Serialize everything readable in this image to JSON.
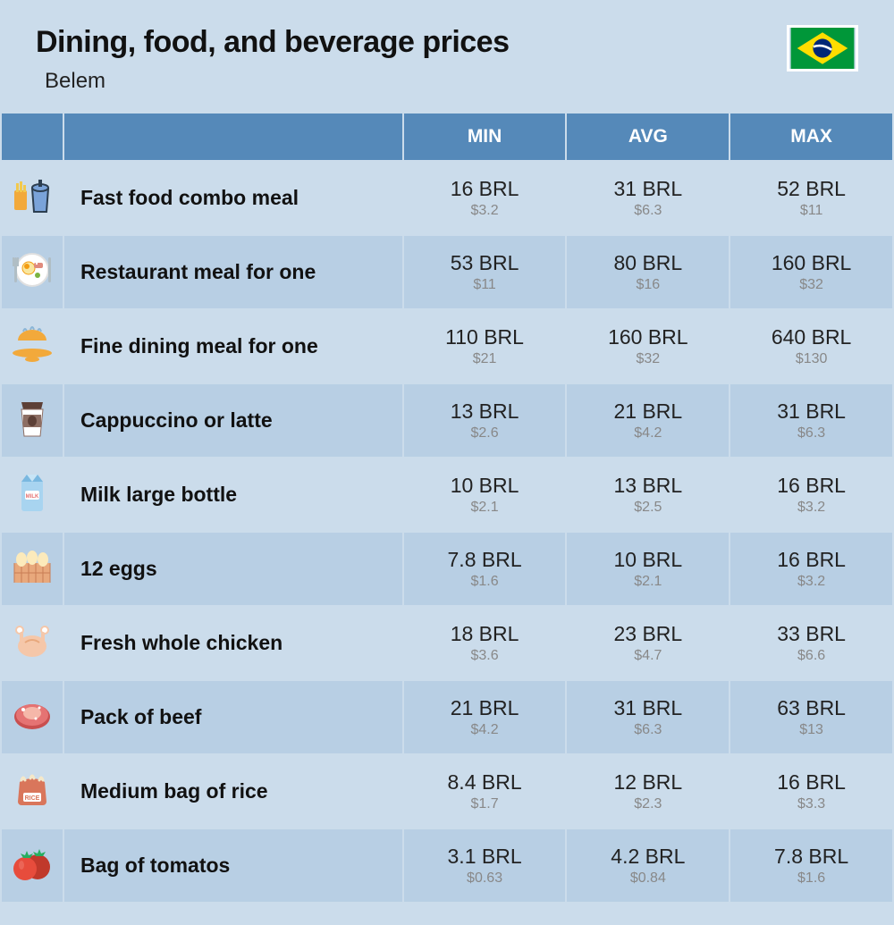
{
  "header": {
    "title": "Dining, food, and beverage prices",
    "subtitle": "Belem"
  },
  "columns": {
    "min": "MIN",
    "avg": "AVG",
    "max": "MAX"
  },
  "rows": [
    {
      "icon": "fast-food",
      "name": "Fast food combo meal",
      "min_p": "16 BRL",
      "min_s": "$3.2",
      "avg_p": "31 BRL",
      "avg_s": "$6.3",
      "max_p": "52 BRL",
      "max_s": "$11"
    },
    {
      "icon": "restaurant",
      "name": "Restaurant meal for one",
      "min_p": "53 BRL",
      "min_s": "$11",
      "avg_p": "80 BRL",
      "avg_s": "$16",
      "max_p": "160 BRL",
      "max_s": "$32"
    },
    {
      "icon": "fine-dining",
      "name": "Fine dining meal for one",
      "min_p": "110 BRL",
      "min_s": "$21",
      "avg_p": "160 BRL",
      "avg_s": "$32",
      "max_p": "640 BRL",
      "max_s": "$130"
    },
    {
      "icon": "coffee",
      "name": "Cappuccino or latte",
      "min_p": "13 BRL",
      "min_s": "$2.6",
      "avg_p": "21 BRL",
      "avg_s": "$4.2",
      "max_p": "31 BRL",
      "max_s": "$6.3"
    },
    {
      "icon": "milk",
      "name": "Milk large bottle",
      "min_p": "10 BRL",
      "min_s": "$2.1",
      "avg_p": "13 BRL",
      "avg_s": "$2.5",
      "max_p": "16 BRL",
      "max_s": "$3.2"
    },
    {
      "icon": "eggs",
      "name": "12 eggs",
      "min_p": "7.8 BRL",
      "min_s": "$1.6",
      "avg_p": "10 BRL",
      "avg_s": "$2.1",
      "max_p": "16 BRL",
      "max_s": "$3.2"
    },
    {
      "icon": "chicken",
      "name": "Fresh whole chicken",
      "min_p": "18 BRL",
      "min_s": "$3.6",
      "avg_p": "23 BRL",
      "avg_s": "$4.7",
      "max_p": "33 BRL",
      "max_s": "$6.6"
    },
    {
      "icon": "beef",
      "name": "Pack of beef",
      "min_p": "21 BRL",
      "min_s": "$4.2",
      "avg_p": "31 BRL",
      "avg_s": "$6.3",
      "max_p": "63 BRL",
      "max_s": "$13"
    },
    {
      "icon": "rice",
      "name": "Medium bag of rice",
      "min_p": "8.4 BRL",
      "min_s": "$1.7",
      "avg_p": "12 BRL",
      "avg_s": "$2.3",
      "max_p": "16 BRL",
      "max_s": "$3.3"
    },
    {
      "icon": "tomato",
      "name": "Bag of tomatos",
      "min_p": "3.1 BRL",
      "min_s": "$0.63",
      "avg_p": "4.2 BRL",
      "avg_s": "$0.84",
      "max_p": "7.8 BRL",
      "max_s": "$1.6"
    }
  ],
  "flag_colors": {
    "bg": "#009739",
    "diamond": "#fedd00",
    "circle": "#002776",
    "band": "#ffffff"
  },
  "colors": {
    "header_bg": "#5589b9",
    "row_a": "#cbdceb",
    "row_b": "#b8cfe4",
    "text": "#111",
    "sub": "#888"
  }
}
